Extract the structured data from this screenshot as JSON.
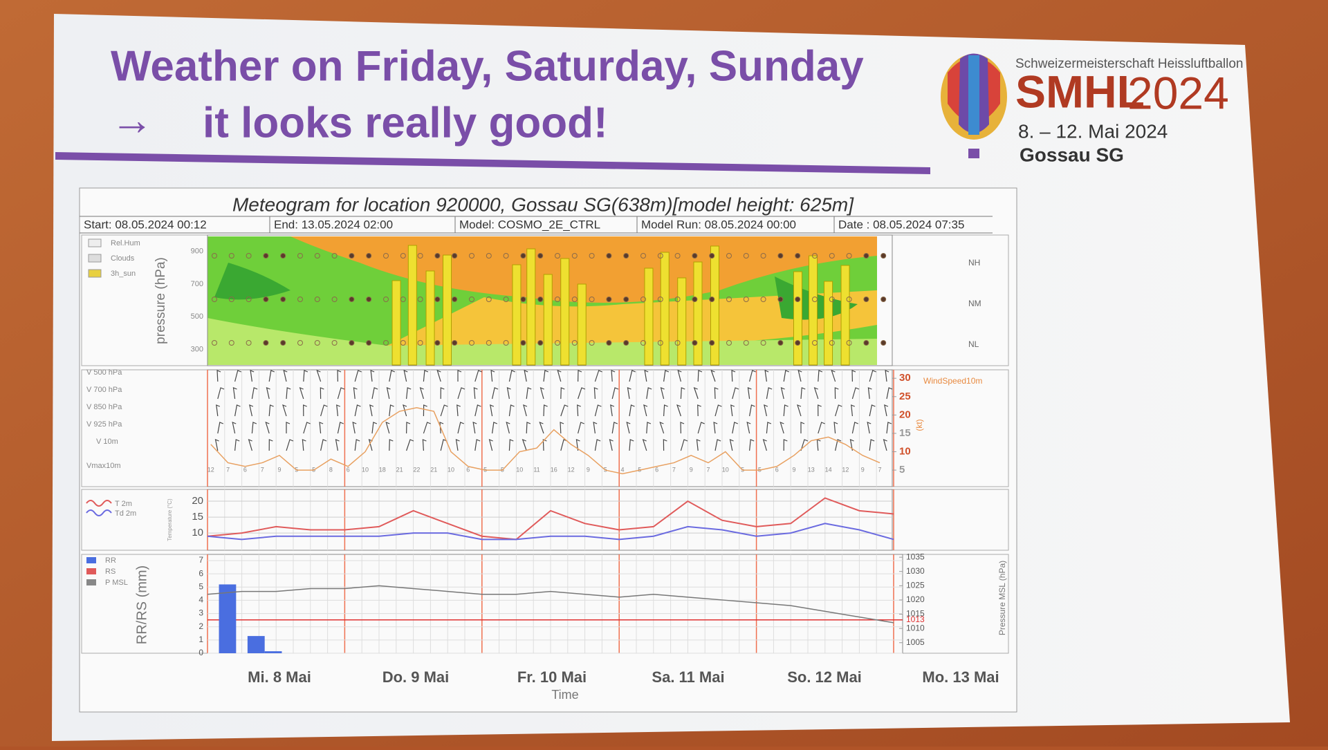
{
  "slide": {
    "title_line1": "Weather on Friday, Saturday, Sunday",
    "arrow": "→",
    "title_line2": "it looks really good!"
  },
  "logo": {
    "subtitle": "Schweizermeisterschaft Heissluftballon",
    "name": "SMHL",
    "year": "2024",
    "dates": "8. – 12. Mai 2024",
    "place": "Gossau SG"
  },
  "meteogram": {
    "title": "Meteogram for location 920000, Gossau SG(638m)[model height: 625m]",
    "header": [
      "Start: 08.05.2024 00:12",
      "End: 13.05.2024 02:00",
      "Model: COSMO_2E_CTRL",
      "Model Run: 08.05.2024 00:00",
      "Date : 08.05.2024 07:35"
    ],
    "days": [
      "Mi. 8 Mai",
      "Do. 9 Mai",
      "Fr. 10 Mai",
      "Sa. 11 Mai",
      "So. 12 Mai",
      "Mo. 13 Mai"
    ],
    "time_label": "Time",
    "xlim": [
      0,
      120
    ],
    "clouds": {
      "legend": [
        "Rel.Hum",
        "Clouds",
        "3h_sun"
      ],
      "axis_label": "pressure (hPa)",
      "yticks": [
        300,
        500,
        700,
        900
      ],
      "levels": [
        "NH",
        "NM",
        "NL"
      ]
    },
    "wind": {
      "rows": [
        "V 500 hPa",
        "V 700 hPa",
        "V 850 hPa",
        "V 925 hPa",
        "V 10m",
        "Vmax10m"
      ],
      "legend": "WindSpeed10m",
      "unit": "(kt)",
      "ylim": [
        0.5,
        32.3
      ],
      "yticks": [
        5,
        10,
        15,
        20,
        25,
        30
      ],
      "color": "#e8a060",
      "x": [
        3,
        6,
        9,
        12,
        15,
        18,
        21,
        24,
        27,
        30,
        33,
        36,
        39,
        42,
        45,
        48,
        51,
        54,
        57,
        60,
        63,
        66,
        69,
        72,
        75,
        78,
        81,
        84,
        87,
        90,
        93,
        96,
        99,
        102,
        105,
        108,
        111,
        114,
        117,
        120
      ],
      "values": [
        12,
        7,
        6,
        7,
        9,
        5,
        5,
        8,
        6,
        10,
        18,
        21,
        22,
        21,
        10,
        6,
        5,
        5,
        10,
        11,
        16,
        12,
        9,
        5,
        4,
        5,
        6,
        7,
        9,
        7,
        10,
        5,
        5,
        6,
        9,
        13,
        14,
        12,
        9,
        7
      ]
    },
    "temperature": {
      "axis_label": "Temperature (°C)",
      "ylim": [
        4.6,
        23.7
      ],
      "yticks": [
        10,
        15,
        20
      ],
      "x": [
        0,
        6,
        12,
        18,
        24,
        30,
        36,
        42,
        48,
        54,
        60,
        66,
        72,
        78,
        84,
        90,
        96,
        102,
        108,
        114,
        120
      ],
      "series": [
        {
          "name": "T 2m",
          "color": "#e05a5a",
          "values": [
            9,
            10,
            12,
            11,
            11,
            12,
            17,
            13,
            9,
            8,
            17,
            13,
            11,
            12,
            20,
            14,
            12,
            13,
            21,
            17,
            16
          ]
        },
        {
          "name": "Td 2m",
          "color": "#6a6ae0",
          "values": [
            9,
            8,
            9,
            9,
            9,
            9,
            10,
            10,
            8,
            8,
            9,
            9,
            8,
            9,
            12,
            11,
            9,
            10,
            13,
            11,
            8
          ]
        }
      ]
    },
    "precipitation": {
      "axis_label": "RR/RS (mm)",
      "legend": [
        "RR",
        "RS",
        "P MSL"
      ],
      "ylim": [
        0,
        7.47
      ],
      "yticks": [
        0,
        1,
        2,
        3,
        4,
        5,
        6,
        7
      ],
      "x": [
        2,
        7,
        10
      ],
      "values": [
        5.2,
        1.3,
        0.15
      ],
      "color": "#4a6ee0",
      "pressure": {
        "axis_label": "Pressure MSL (hPa)",
        "y2lim": [
          1001.3,
          1036
        ],
        "y2ticks": [
          1005,
          1010,
          1013,
          1015,
          1020,
          1025,
          1030,
          1035
        ],
        "reference": 1013,
        "color": "#777777",
        "x": [
          0,
          6,
          12,
          18,
          24,
          30,
          36,
          42,
          48,
          54,
          60,
          66,
          72,
          78,
          84,
          90,
          96,
          102,
          108,
          114,
          120
        ],
        "values": [
          1022,
          1023,
          1023,
          1024,
          1024,
          1025,
          1024,
          1023,
          1022,
          1022,
          1023,
          1022,
          1021,
          1022,
          1021,
          1020,
          1019,
          1018,
          1016,
          1014,
          1012
        ]
      }
    }
  }
}
